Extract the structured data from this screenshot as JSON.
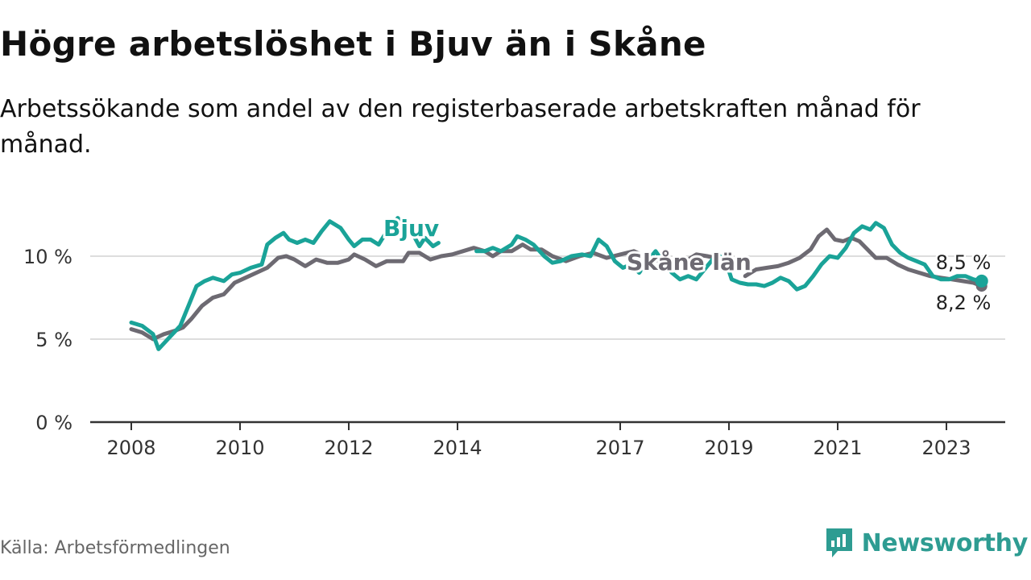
{
  "title": "Högre arbetslöshet i Bjuv än i Skåne",
  "subtitle": "Arbetssökande som andel av den registerbaserade arbetskraften månad för månad.",
  "source": "Källa: Arbetsförmedlingen",
  "brand": "Newsworthy",
  "colors": {
    "bjuv": "#1aa398",
    "skane": "#6d6a72",
    "grid": "#dddddd",
    "axis": "#333333"
  },
  "chart_data": {
    "type": "line",
    "title": "Högre arbetslöshet i Bjuv än i Skåne",
    "xlabel": "",
    "ylabel": "",
    "ylim": [
      0,
      13
    ],
    "xlim": [
      2008,
      2024.1
    ],
    "y_ticks": [
      0,
      5,
      10
    ],
    "y_tick_labels": [
      "0 %",
      "5 %",
      "10 %"
    ],
    "x_ticks": [
      2008,
      2010,
      2012,
      2014,
      2017,
      2019,
      2021,
      2023
    ],
    "x_tick_labels": [
      "2008",
      "2010",
      "2012",
      "2014",
      "2017",
      "2019",
      "2021",
      "2023"
    ],
    "series": [
      {
        "name": "Skåne län",
        "label": "Skåne län",
        "end_label": "8,2 %",
        "points": [
          [
            2008.0,
            5.6
          ],
          [
            2008.2,
            5.4
          ],
          [
            2008.4,
            5.0
          ],
          [
            2008.6,
            5.3
          ],
          [
            2008.8,
            5.5
          ],
          [
            2008.95,
            5.7
          ],
          [
            2009.1,
            6.2
          ],
          [
            2009.3,
            7.0
          ],
          [
            2009.5,
            7.5
          ],
          [
            2009.7,
            7.7
          ],
          [
            2009.9,
            8.4
          ],
          [
            2010.1,
            8.7
          ],
          [
            2010.3,
            9.0
          ],
          [
            2010.5,
            9.3
          ],
          [
            2010.7,
            9.9
          ],
          [
            2010.85,
            10.0
          ],
          [
            2011.0,
            9.8
          ],
          [
            2011.2,
            9.4
          ],
          [
            2011.4,
            9.8
          ],
          [
            2011.6,
            9.6
          ],
          [
            2011.8,
            9.6
          ],
          [
            2012.0,
            9.8
          ],
          [
            2012.1,
            10.1
          ],
          [
            2012.3,
            9.8
          ],
          [
            2012.5,
            9.4
          ],
          [
            2012.7,
            9.7
          ],
          [
            2012.85,
            9.7
          ],
          [
            2013.0,
            9.7
          ],
          [
            2013.1,
            10.2
          ],
          [
            2013.3,
            10.2
          ],
          [
            2013.5,
            9.8
          ],
          [
            2013.7,
            10.0
          ],
          [
            2013.9,
            10.1
          ],
          [
            2014.1,
            10.3
          ],
          [
            2014.3,
            10.5
          ],
          [
            2014.5,
            10.3
          ],
          [
            2014.65,
            10.0
          ],
          [
            2014.8,
            10.3
          ],
          [
            2015.0,
            10.3
          ],
          [
            2015.2,
            10.7
          ],
          [
            2015.35,
            10.4
          ],
          [
            2015.55,
            10.4
          ],
          [
            2015.75,
            10.0
          ],
          [
            2016.0,
            9.7
          ],
          [
            2016.25,
            10.0
          ],
          [
            2016.5,
            10.2
          ],
          [
            2016.75,
            9.9
          ],
          [
            2017.0,
            10.1
          ],
          [
            2017.25,
            10.3
          ],
          [
            2017.5,
            9.9
          ],
          [
            2017.75,
            9.7
          ],
          [
            2018.0,
            9.7
          ],
          [
            2018.25,
            9.8
          ],
          [
            2018.4,
            10.1
          ],
          [
            2018.6,
            10.0
          ],
          [
            2018.75,
            9.9
          ],
          [
            2023.4,
            8.5
          ],
          [
            2023.65,
            8.2
          ]
        ]
      },
      {
        "name": "Bjuv",
        "label": "Bjuv",
        "end_label": "8,5 %",
        "points": [
          [
            2008.0,
            6.0
          ],
          [
            2008.1,
            5.9
          ],
          [
            2008.2,
            5.7
          ],
          [
            2008.3,
            5.4
          ],
          [
            2008.4,
            4.9
          ],
          [
            2008.5,
            4.4
          ],
          [
            2008.6,
            4.8
          ],
          [
            2008.75,
            5.2
          ],
          [
            2008.95,
            6.3
          ],
          [
            2009.1,
            7.3
          ],
          [
            2009.3,
            8.3
          ],
          [
            2009.5,
            8.6
          ],
          [
            2009.65,
            8.4
          ],
          [
            2009.8,
            8.8
          ],
          [
            2010.0,
            9.0
          ],
          [
            2010.25,
            9.4
          ],
          [
            2010.5,
            10.1
          ],
          [
            2010.65,
            11.1
          ],
          [
            2010.8,
            11.3
          ],
          [
            2010.95,
            11.0
          ],
          [
            2011.1,
            10.8
          ],
          [
            2011.25,
            11.0
          ],
          [
            2011.4,
            10.8
          ],
          [
            2011.55,
            11.4
          ],
          [
            2011.7,
            11.9
          ],
          [
            2011.85,
            11.7
          ],
          [
            2012.0,
            11.1
          ],
          [
            2012.1,
            10.6
          ],
          [
            2012.25,
            10.8
          ],
          [
            2012.4,
            11.0
          ],
          [
            2012.6,
            10.7
          ],
          [
            2012.75,
            11.6
          ],
          [
            2012.85,
            12.1
          ],
          [
            2013.0,
            11.7
          ],
          [
            2013.15,
            11.3
          ],
          [
            2013.3,
            10.6
          ],
          [
            2013.45,
            11.2
          ],
          [
            2013.55,
            10.8
          ]
        ],
        "segments": [
          [
            [
              2008.0,
              6.0
            ],
            [
              2008.2,
              5.8
            ],
            [
              2008.4,
              5.3
            ],
            [
              2008.5,
              4.4
            ],
            [
              2008.7,
              5.1
            ],
            [
              2008.9,
              5.8
            ],
            [
              2009.05,
              7.0
            ],
            [
              2009.2,
              8.2
            ],
            [
              2009.35,
              8.5
            ],
            [
              2009.5,
              8.7
            ],
            [
              2009.7,
              8.5
            ],
            [
              2009.85,
              8.9
            ],
            [
              2010.0,
              9.0
            ],
            [
              2010.2,
              9.3
            ],
            [
              2010.4,
              9.5
            ],
            [
              2010.5,
              10.7
            ],
            [
              2010.65,
              11.1
            ],
            [
              2010.8,
              11.4
            ],
            [
              2010.9,
              11.0
            ],
            [
              2011.05,
              10.8
            ],
            [
              2011.2,
              11.0
            ],
            [
              2011.35,
              10.8
            ],
            [
              2011.5,
              11.5
            ],
            [
              2011.65,
              12.1
            ],
            [
              2011.85,
              11.7
            ],
            [
              2012.0,
              11.0
            ],
            [
              2012.1,
              10.6
            ],
            [
              2012.25,
              11.0
            ],
            [
              2012.4,
              11.0
            ],
            [
              2012.55,
              10.7
            ],
            [
              2012.7,
              11.5
            ],
            [
              2012.9,
              12.3
            ],
            [
              2013.05,
              11.8
            ],
            [
              2013.2,
              11.2
            ],
            [
              2013.3,
              10.6
            ],
            [
              2013.4,
              11.1
            ],
            [
              2013.55,
              10.6
            ],
            [
              2013.65,
              10.8
            ]
          ],
          [
            [
              2014.35,
              10.3
            ],
            [
              2014.5,
              10.3
            ],
            [
              2014.65,
              10.5
            ],
            [
              2014.8,
              10.3
            ],
            [
              2015.0,
              10.7
            ],
            [
              2015.1,
              11.2
            ],
            [
              2015.25,
              11.0
            ],
            [
              2015.4,
              10.7
            ],
            [
              2015.6,
              10.0
            ],
            [
              2015.75,
              9.6
            ],
            [
              2015.9,
              9.7
            ],
            [
              2016.1,
              10.0
            ],
            [
              2016.3,
              10.1
            ],
            [
              2016.45,
              10.0
            ],
            [
              2016.6,
              11.0
            ],
            [
              2016.75,
              10.6
            ],
            [
              2016.9,
              9.7
            ],
            [
              2017.05,
              9.3
            ],
            [
              2017.2,
              9.5
            ],
            [
              2017.35,
              9.0
            ],
            [
              2017.5,
              9.7
            ],
            [
              2017.65,
              10.3
            ],
            [
              2017.8,
              9.6
            ],
            [
              2017.95,
              9.0
            ],
            [
              2018.1,
              8.6
            ],
            [
              2018.25,
              8.8
            ],
            [
              2018.4,
              8.6
            ],
            [
              2018.55,
              9.2
            ],
            [
              2018.75,
              10.0
            ]
          ]
        ]
      }
    ]
  }
}
